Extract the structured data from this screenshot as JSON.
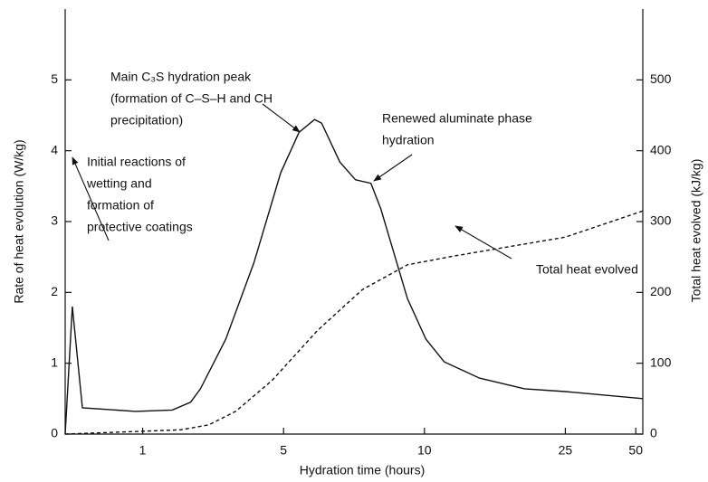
{
  "chart_data": {
    "type": "line",
    "xlabel": "Hydration time (hours)",
    "ylabel": "Rate of heat evolution (W/kg)",
    "y2label": "Total heat evolved (kJ/kg)",
    "xlim": [
      0,
      4.1
    ],
    "xticks": [
      {
        "value": 0.55,
        "label": "1"
      },
      {
        "value": 1.55,
        "label": "5"
      },
      {
        "value": 2.55,
        "label": "10"
      },
      {
        "value": 3.55,
        "label": "25"
      },
      {
        "value": 4.05,
        "label": "50"
      }
    ],
    "ylim": [
      0,
      6
    ],
    "yticks": [
      0,
      1,
      2,
      3,
      4,
      5
    ],
    "y2lim": [
      0,
      600
    ],
    "y2ticks": [
      0,
      100,
      200,
      300,
      400,
      500
    ],
    "series": [
      {
        "color": "#111111",
        "style": "solid",
        "x": [
          0,
          0.051,
          0.122,
          0.5,
          0.76,
          0.89,
          0.96,
          1.14,
          1.34,
          1.53,
          1.66,
          1.77,
          1.82,
          1.95,
          2.06,
          2.17,
          2.24,
          2.43,
          2.56,
          2.69,
          2.94,
          3.26,
          3.55,
          4.1
        ],
        "values": [
          0,
          1.8,
          0.37,
          0.32,
          0.34,
          0.45,
          0.64,
          1.34,
          2.42,
          3.69,
          4.26,
          4.44,
          4.39,
          3.84,
          3.59,
          3.54,
          3.18,
          1.91,
          1.34,
          1.02,
          0.79,
          0.64,
          0.6,
          0.5
        ]
      },
      {
        "color": "#111111",
        "style": "dashed",
        "axis": "y2",
        "x": [
          0,
          0.82,
          1.02,
          1.21,
          1.47,
          1.79,
          2.11,
          2.43,
          2.75,
          3.55,
          4.1
        ],
        "values": [
          0,
          6,
          13,
          32,
          76,
          146,
          204,
          239,
          251,
          278,
          315
        ]
      }
    ],
    "annotations": [
      {
        "lines": [
          "Initial reactions of",
          "wetting and",
          "formation of",
          "protective coatings"
        ]
      },
      {
        "lines": [
          "Main C₃S hydration peak",
          "(formation of C–S–H and CH",
          "precipitation)"
        ]
      },
      {
        "lines": [
          "Renewed aluminate phase",
          "hydration"
        ]
      },
      {
        "lines": [
          "Total heat evolved"
        ]
      }
    ]
  }
}
